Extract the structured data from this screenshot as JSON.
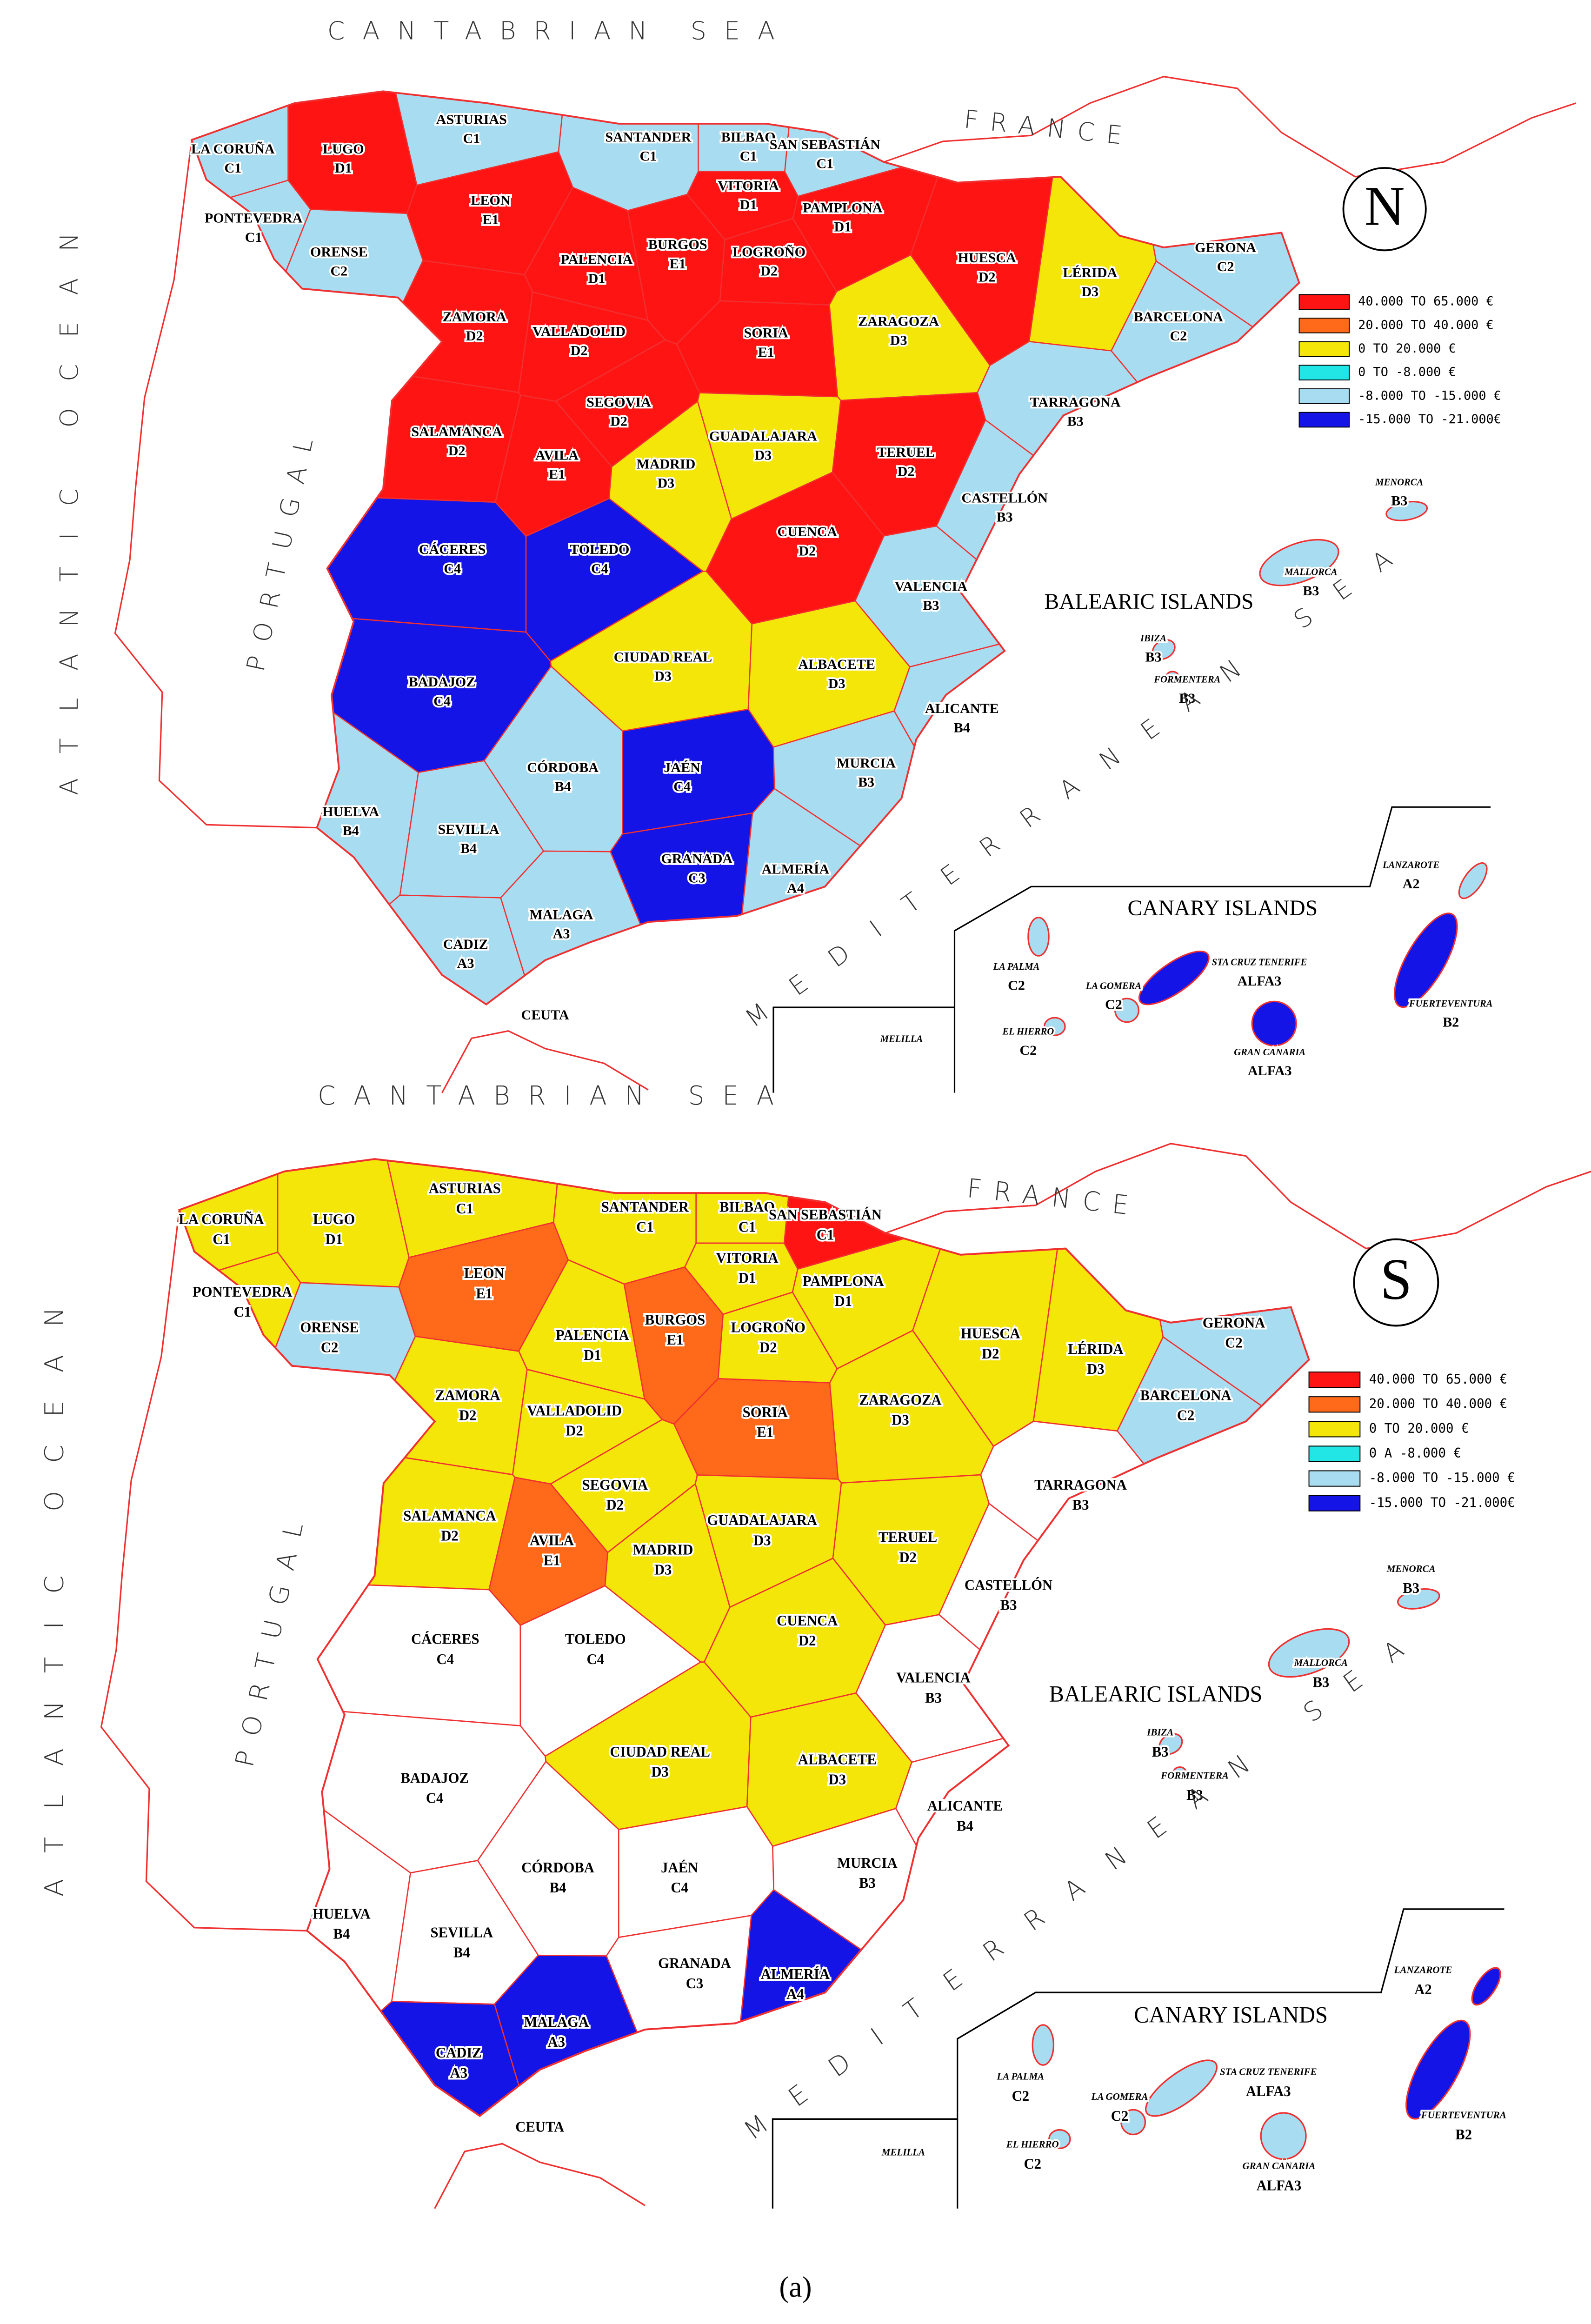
{
  "maps": [
    {
      "compass": "N",
      "sea_north": "CANTABRIAN SEA",
      "country_east": "FRANCE",
      "ocean": "ATLANTIC OCEAN",
      "country_west": "PORTUGAL",
      "sea_south": "MEDITERRANEAN SEA",
      "balearic_title": "BALEARIC ISLANDS",
      "canary_title": "CANARY ISLANDS",
      "places": [
        "CEUTA",
        "MELILLA"
      ],
      "legend": [
        {
          "label": "40.000 TO 65.000 €",
          "color": "#ff1414"
        },
        {
          "label": "20.000 TO 40.000 €",
          "color": "#ff6a1a"
        },
        {
          "label": "0 TO 20.000 €",
          "color": "#f5e60a"
        },
        {
          "label": "0 TO -8.000 €",
          "color": "#22e6e6"
        },
        {
          "label": "-8.000 TO -15.000 €",
          "color": "#a8dcf0"
        },
        {
          "label": "-15.000 TO -21.000€",
          "color": "#1414e6"
        }
      ],
      "provinces": [
        {
          "name": "LA CORUÑA",
          "code": "C1",
          "color": "#a8dcf0"
        },
        {
          "name": "LUGO",
          "code": "D1",
          "color": "#ff1414"
        },
        {
          "name": "ASTURIAS",
          "code": "C1",
          "color": "#a8dcf0"
        },
        {
          "name": "SANTANDER",
          "code": "C1",
          "color": "#a8dcf0"
        },
        {
          "name": "BILBAO",
          "code": "C1",
          "color": "#a8dcf0"
        },
        {
          "name": "SAN SEBASTIÁN",
          "code": "C1",
          "color": "#a8dcf0"
        },
        {
          "name": "PONTEVEDRA",
          "code": "C1",
          "color": "#a8dcf0"
        },
        {
          "name": "ORENSE",
          "code": "C2",
          "color": "#a8dcf0"
        },
        {
          "name": "LEON",
          "code": "E1",
          "color": "#ff1414"
        },
        {
          "name": "PALENCIA",
          "code": "D1",
          "color": "#ff1414"
        },
        {
          "name": "BURGOS",
          "code": "E1",
          "color": "#ff1414"
        },
        {
          "name": "VITORIA",
          "code": "D1",
          "color": "#ff1414"
        },
        {
          "name": "LOGROÑO",
          "code": "D2",
          "color": "#ff1414"
        },
        {
          "name": "PAMPLONA",
          "code": "D1",
          "color": "#ff1414"
        },
        {
          "name": "HUESCA",
          "code": "D2",
          "color": "#ff1414"
        },
        {
          "name": "LÉRIDA",
          "code": "D3",
          "color": "#f5e60a"
        },
        {
          "name": "GERONA",
          "code": "C2",
          "color": "#a8dcf0"
        },
        {
          "name": "BARCELONA",
          "code": "C2",
          "color": "#a8dcf0"
        },
        {
          "name": "ZAMORA",
          "code": "D2",
          "color": "#ff1414"
        },
        {
          "name": "VALLADOLID",
          "code": "D2",
          "color": "#ff1414"
        },
        {
          "name": "SORIA",
          "code": "E1",
          "color": "#ff1414"
        },
        {
          "name": "ZARAGOZA",
          "code": "D3",
          "color": "#f5e60a"
        },
        {
          "name": "TARRAGONA",
          "code": "B3",
          "color": "#a8dcf0"
        },
        {
          "name": "SEGOVIA",
          "code": "D2",
          "color": "#ff1414"
        },
        {
          "name": "SALAMANCA",
          "code": "D2",
          "color": "#ff1414"
        },
        {
          "name": "AVILA",
          "code": "E1",
          "color": "#ff1414"
        },
        {
          "name": "GUADALAJARA",
          "code": "D3",
          "color": "#f5e60a"
        },
        {
          "name": "MADRID",
          "code": "D3",
          "color": "#f5e60a"
        },
        {
          "name": "TERUEL",
          "code": "D2",
          "color": "#ff1414"
        },
        {
          "name": "CASTELLÓN",
          "code": "B3",
          "color": "#a8dcf0"
        },
        {
          "name": "CÁCERES",
          "code": "C4",
          "color": "#1414e6"
        },
        {
          "name": "TOLEDO",
          "code": "C4",
          "color": "#1414e6"
        },
        {
          "name": "CUENCA",
          "code": "D2",
          "color": "#ff1414"
        },
        {
          "name": "VALENCIA",
          "code": "B3",
          "color": "#a8dcf0"
        },
        {
          "name": "CIUDAD REAL",
          "code": "D3",
          "color": "#f5e60a"
        },
        {
          "name": "ALBACETE",
          "code": "D3",
          "color": "#f5e60a"
        },
        {
          "name": "ALICANTE",
          "code": "B4",
          "color": "#a8dcf0"
        },
        {
          "name": "BADAJOZ",
          "code": "C4",
          "color": "#1414e6"
        },
        {
          "name": "CÓRDOBA",
          "code": "B4",
          "color": "#a8dcf0"
        },
        {
          "name": "JAÉN",
          "code": "C4",
          "color": "#1414e6"
        },
        {
          "name": "MURCIA",
          "code": "B3",
          "color": "#a8dcf0"
        },
        {
          "name": "HUELVA",
          "code": "B4",
          "color": "#a8dcf0"
        },
        {
          "name": "SEVILLA",
          "code": "B4",
          "color": "#a8dcf0"
        },
        {
          "name": "GRANADA",
          "code": "C3",
          "color": "#1414e6"
        },
        {
          "name": "ALMERÍA",
          "code": "A4",
          "color": "#a8dcf0"
        },
        {
          "name": "MALAGA",
          "code": "A3",
          "color": "#a8dcf0"
        },
        {
          "name": "CADIZ",
          "code": "A3",
          "color": "#a8dcf0"
        },
        {
          "name": "MENORCA",
          "code": "B3",
          "color": "#a8dcf0"
        },
        {
          "name": "MALLORCA",
          "code": "B3",
          "color": "#a8dcf0"
        },
        {
          "name": "IBIZA",
          "code": "B3",
          "color": "#a8dcf0"
        },
        {
          "name": "FORMENTERA",
          "code": "B3",
          "color": "#a8dcf0"
        },
        {
          "name": "LANZAROTE",
          "code": "A2",
          "color": "#a8dcf0"
        },
        {
          "name": "LA PALMA",
          "code": "C2",
          "color": "#a8dcf0"
        },
        {
          "name": "LA GOMERA",
          "code": "C2",
          "color": "#a8dcf0"
        },
        {
          "name": "STA CRUZ TENERIFE",
          "code": "ALFA3",
          "color": "#1414e6"
        },
        {
          "name": "FUERTEVENTURA",
          "code": "B2",
          "color": "#1414e6"
        },
        {
          "name": "EL HIERRO",
          "code": "C2",
          "color": "#a8dcf0"
        },
        {
          "name": "GRAN CANARIA",
          "code": "ALFA3",
          "color": "#1414e6"
        }
      ]
    },
    {
      "compass": "S",
      "sea_north": "CANTABRIAN SEA",
      "country_east": "FRANCE",
      "ocean": "ATLANTIC OCEAN",
      "country_west": "PORTUGAL",
      "sea_south": "MEDITERRANEAN SEA",
      "balearic_title": "BALEARIC ISLANDS",
      "canary_title": "CANARY ISLANDS",
      "places": [
        "CEUTA",
        "MELILLA"
      ],
      "legend": [
        {
          "label": "40.000 TO 65.000 €",
          "color": "#ff1414"
        },
        {
          "label": "20.000 TO 40.000 €",
          "color": "#ff6a1a"
        },
        {
          "label": "0 TO 20.000 €",
          "color": "#f5e60a"
        },
        {
          "label": "0 A -8.000 €",
          "color": "#22e6e6"
        },
        {
          "label": "-8.000 TO -15.000 €",
          "color": "#a8dcf0"
        },
        {
          "label": "-15.000 TO -21.000€",
          "color": "#1414e6"
        }
      ],
      "provinces": [
        {
          "name": "LA CORUÑA",
          "code": "C1",
          "color": "#f5e60a"
        },
        {
          "name": "LUGO",
          "code": "D1",
          "color": "#f5e60a"
        },
        {
          "name": "ASTURIAS",
          "code": "C1",
          "color": "#f5e60a"
        },
        {
          "name": "SANTANDER",
          "code": "C1",
          "color": "#f5e60a"
        },
        {
          "name": "BILBAO",
          "code": "C1",
          "color": "#f5e60a"
        },
        {
          "name": "SAN SEBASTIÁN",
          "code": "C1",
          "color": "#ff1414"
        },
        {
          "name": "PONTEVEDRA",
          "code": "C1",
          "color": "#f5e60a"
        },
        {
          "name": "ORENSE",
          "code": "C2",
          "color": "#a8dcf0"
        },
        {
          "name": "LEON",
          "code": "E1",
          "color": "#ff6a1a"
        },
        {
          "name": "PALENCIA",
          "code": "D1",
          "color": "#f5e60a"
        },
        {
          "name": "BURGOS",
          "code": "E1",
          "color": "#ff6a1a"
        },
        {
          "name": "VITORIA",
          "code": "D1",
          "color": "#f5e60a"
        },
        {
          "name": "LOGROÑO",
          "code": "D2",
          "color": "#f5e60a"
        },
        {
          "name": "PAMPLONA",
          "code": "D1",
          "color": "#f5e60a"
        },
        {
          "name": "HUESCA",
          "code": "D2",
          "color": "#f5e60a"
        },
        {
          "name": "LÉRIDA",
          "code": "D3",
          "color": "#f5e60a"
        },
        {
          "name": "GERONA",
          "code": "C2",
          "color": "#a8dcf0"
        },
        {
          "name": "BARCELONA",
          "code": "C2",
          "color": "#a8dcf0"
        },
        {
          "name": "ZAMORA",
          "code": "D2",
          "color": "#f5e60a"
        },
        {
          "name": "VALLADOLID",
          "code": "D2",
          "color": "#f5e60a"
        },
        {
          "name": "SORIA",
          "code": "E1",
          "color": "#ff6a1a"
        },
        {
          "name": "ZARAGOZA",
          "code": "D3",
          "color": "#f5e60a"
        },
        {
          "name": "TARRAGONA",
          "code": "B3",
          "color": "#ffffff"
        },
        {
          "name": "SEGOVIA",
          "code": "D2",
          "color": "#f5e60a"
        },
        {
          "name": "SALAMANCA",
          "code": "D2",
          "color": "#f5e60a"
        },
        {
          "name": "AVILA",
          "code": "E1",
          "color": "#ff6a1a"
        },
        {
          "name": "GUADALAJARA",
          "code": "D3",
          "color": "#f5e60a"
        },
        {
          "name": "MADRID",
          "code": "D3",
          "color": "#f5e60a"
        },
        {
          "name": "TERUEL",
          "code": "D2",
          "color": "#f5e60a"
        },
        {
          "name": "CASTELLÓN",
          "code": "B3",
          "color": "#ffffff"
        },
        {
          "name": "CÁCERES",
          "code": "C4",
          "color": "#ffffff"
        },
        {
          "name": "TOLEDO",
          "code": "C4",
          "color": "#ffffff"
        },
        {
          "name": "CUENCA",
          "code": "D2",
          "color": "#f5e60a"
        },
        {
          "name": "VALENCIA",
          "code": "B3",
          "color": "#ffffff"
        },
        {
          "name": "CIUDAD REAL",
          "code": "D3",
          "color": "#f5e60a"
        },
        {
          "name": "ALBACETE",
          "code": "D3",
          "color": "#f5e60a"
        },
        {
          "name": "ALICANTE",
          "code": "B4",
          "color": "#ffffff"
        },
        {
          "name": "BADAJOZ",
          "code": "C4",
          "color": "#ffffff"
        },
        {
          "name": "CÓRDOBA",
          "code": "B4",
          "color": "#ffffff"
        },
        {
          "name": "JAÉN",
          "code": "C4",
          "color": "#ffffff"
        },
        {
          "name": "MURCIA",
          "code": "B3",
          "color": "#ffffff"
        },
        {
          "name": "HUELVA",
          "code": "B4",
          "color": "#ffffff"
        },
        {
          "name": "SEVILLA",
          "code": "B4",
          "color": "#ffffff"
        },
        {
          "name": "GRANADA",
          "code": "C3",
          "color": "#ffffff"
        },
        {
          "name": "ALMERÍA",
          "code": "A4",
          "color": "#1414e6"
        },
        {
          "name": "MALAGA",
          "code": "A3",
          "color": "#1414e6"
        },
        {
          "name": "CADIZ",
          "code": "A3",
          "color": "#1414e6"
        },
        {
          "name": "MENORCA",
          "code": "B3",
          "color": "#a8dcf0"
        },
        {
          "name": "MALLORCA",
          "code": "B3",
          "color": "#a8dcf0"
        },
        {
          "name": "IBIZA",
          "code": "B3",
          "color": "#a8dcf0"
        },
        {
          "name": "FORMENTERA",
          "code": "B3",
          "color": "#a8dcf0"
        },
        {
          "name": "LANZAROTE",
          "code": "A2",
          "color": "#1414e6"
        },
        {
          "name": "LA PALMA",
          "code": "C2",
          "color": "#a8dcf0"
        },
        {
          "name": "LA GOMERA",
          "code": "C2",
          "color": "#a8dcf0"
        },
        {
          "name": "STA CRUZ TENERIFE",
          "code": "ALFA3",
          "color": "#a8dcf0"
        },
        {
          "name": "FUERTEVENTURA",
          "code": "B2",
          "color": "#1414e6"
        },
        {
          "name": "EL HIERRO",
          "code": "C2",
          "color": "#a8dcf0"
        },
        {
          "name": "GRAN CANARIA",
          "code": "ALFA3",
          "color": "#a8dcf0"
        }
      ]
    }
  ],
  "caption": "(a)"
}
